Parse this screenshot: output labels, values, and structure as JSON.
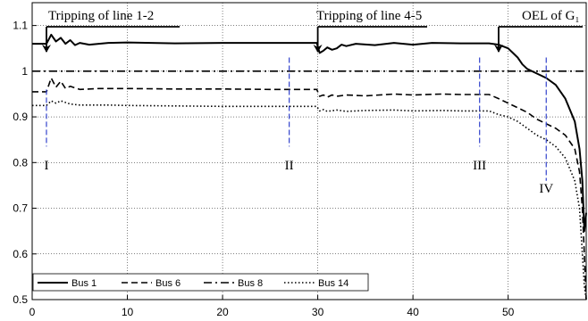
{
  "chart_data": {
    "type": "line",
    "xlim": [
      0,
      58.2
    ],
    "ylim": [
      0.5,
      1.15
    ],
    "xticks": [
      0,
      10,
      20,
      30,
      40,
      50
    ],
    "yticks": [
      0.5,
      0.6,
      0.7,
      0.8,
      0.9,
      1,
      1.1
    ],
    "ytick_labels": [
      "0.5",
      "0.6",
      "0.7",
      "0.8",
      "0.9",
      "1",
      "1.1"
    ],
    "grid": true,
    "reference_line": {
      "y": 1.0,
      "style": "dash-dot"
    },
    "legend": {
      "placement": "bottom-left",
      "orientation": "horizontal"
    },
    "series": [
      {
        "name": "Bus 1",
        "style": "solid",
        "points": [
          [
            0,
            1.06
          ],
          [
            1.5,
            1.06
          ],
          [
            2,
            1.08
          ],
          [
            2.5,
            1.065
          ],
          [
            3,
            1.073
          ],
          [
            3.5,
            1.06
          ],
          [
            4,
            1.068
          ],
          [
            4.5,
            1.057
          ],
          [
            5,
            1.062
          ],
          [
            6,
            1.058
          ],
          [
            8,
            1.062
          ],
          [
            10,
            1.063
          ],
          [
            15,
            1.061
          ],
          [
            20,
            1.062
          ],
          [
            25,
            1.062
          ],
          [
            29.9,
            1.062
          ],
          [
            30.2,
            1.04
          ],
          [
            30.6,
            1.045
          ],
          [
            31,
            1.052
          ],
          [
            31.5,
            1.047
          ],
          [
            32,
            1.05
          ],
          [
            32.5,
            1.058
          ],
          [
            33,
            1.055
          ],
          [
            34,
            1.06
          ],
          [
            36,
            1.057
          ],
          [
            38,
            1.062
          ],
          [
            40,
            1.058
          ],
          [
            42,
            1.062
          ],
          [
            45,
            1.061
          ],
          [
            48,
            1.061
          ],
          [
            49,
            1.058
          ],
          [
            50,
            1.05
          ],
          [
            50.5,
            1.04
          ],
          [
            51,
            1.03
          ],
          [
            51.5,
            1.015
          ],
          [
            52,
            1.005
          ],
          [
            53,
            0.995
          ],
          [
            54,
            0.985
          ],
          [
            55,
            0.97
          ],
          [
            56,
            0.94
          ],
          [
            57,
            0.89
          ],
          [
            57.5,
            0.83
          ],
          [
            57.8,
            0.76
          ],
          [
            58,
            0.65
          ],
          [
            58.2,
            0.69
          ]
        ]
      },
      {
        "name": "Bus 6",
        "style": "dashed",
        "points": [
          [
            0,
            0.955
          ],
          [
            1.5,
            0.955
          ],
          [
            2,
            0.985
          ],
          [
            2.5,
            0.965
          ],
          [
            3,
            0.978
          ],
          [
            3.5,
            0.962
          ],
          [
            4,
            0.967
          ],
          [
            5,
            0.96
          ],
          [
            7,
            0.962
          ],
          [
            10,
            0.962
          ],
          [
            15,
            0.961
          ],
          [
            20,
            0.961
          ],
          [
            25,
            0.96
          ],
          [
            29.9,
            0.96
          ],
          [
            30.2,
            0.945
          ],
          [
            30.6,
            0.948
          ],
          [
            31,
            0.943
          ],
          [
            31.5,
            0.948
          ],
          [
            32,
            0.945
          ],
          [
            33,
            0.948
          ],
          [
            35,
            0.946
          ],
          [
            38,
            0.95
          ],
          [
            40,
            0.948
          ],
          [
            43,
            0.95
          ],
          [
            45,
            0.949
          ],
          [
            48,
            0.949
          ],
          [
            49,
            0.94
          ],
          [
            50,
            0.93
          ],
          [
            51,
            0.92
          ],
          [
            52,
            0.91
          ],
          [
            53,
            0.895
          ],
          [
            54,
            0.885
          ],
          [
            55,
            0.875
          ],
          [
            56,
            0.86
          ],
          [
            57,
            0.83
          ],
          [
            57.5,
            0.78
          ],
          [
            57.8,
            0.7
          ],
          [
            58,
            0.6
          ],
          [
            58.2,
            0.5
          ]
        ]
      },
      {
        "name": "Bus 8",
        "style": "dash-dot",
        "points": [
          [
            0,
            1.0
          ],
          [
            58.2,
            1.0
          ]
        ]
      },
      {
        "name": "Bus 14",
        "style": "dotted",
        "points": [
          [
            0,
            0.925
          ],
          [
            1.5,
            0.925
          ],
          [
            2,
            0.935
          ],
          [
            2.5,
            0.93
          ],
          [
            3,
            0.935
          ],
          [
            4,
            0.928
          ],
          [
            5,
            0.926
          ],
          [
            8,
            0.926
          ],
          [
            10,
            0.925
          ],
          [
            15,
            0.924
          ],
          [
            20,
            0.923
          ],
          [
            25,
            0.923
          ],
          [
            29.9,
            0.923
          ],
          [
            30.2,
            0.913
          ],
          [
            30.6,
            0.916
          ],
          [
            31,
            0.912
          ],
          [
            32,
            0.915
          ],
          [
            33,
            0.912
          ],
          [
            35,
            0.914
          ],
          [
            38,
            0.915
          ],
          [
            40,
            0.913
          ],
          [
            43,
            0.914
          ],
          [
            45,
            0.913
          ],
          [
            48,
            0.913
          ],
          [
            49,
            0.905
          ],
          [
            50,
            0.9
          ],
          [
            51,
            0.89
          ],
          [
            52,
            0.875
          ],
          [
            53,
            0.86
          ],
          [
            54,
            0.85
          ],
          [
            55,
            0.835
          ],
          [
            56,
            0.81
          ],
          [
            57,
            0.76
          ],
          [
            57.5,
            0.7
          ],
          [
            57.8,
            0.6
          ],
          [
            58,
            0.53
          ],
          [
            58.2,
            0.5
          ]
        ]
      }
    ],
    "annotations": [
      {
        "text": "Tripping of line 1-2",
        "x": 1.5,
        "y": 1.05
      },
      {
        "text": "Tripping of line 4-5",
        "x": 30,
        "y": 1.05
      },
      {
        "text": "OEL of G₁",
        "x": 49,
        "y": 1.05
      }
    ],
    "markers": [
      {
        "label": "I",
        "x": 1.5
      },
      {
        "label": "II",
        "x": 27
      },
      {
        "label": "III",
        "x": 47
      },
      {
        "label": "IV",
        "x": 54
      }
    ]
  }
}
